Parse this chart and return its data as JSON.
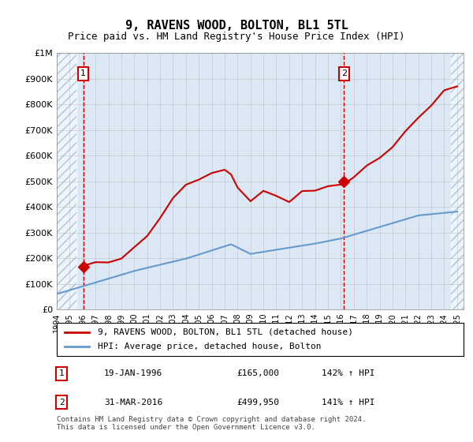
{
  "title": "9, RAVENS WOOD, BOLTON, BL1 5TL",
  "subtitle": "Price paid vs. HM Land Registry's House Price Index (HPI)",
  "y_label_max": 1000000,
  "yticks": [
    0,
    100000,
    200000,
    300000,
    400000,
    500000,
    600000,
    700000,
    800000,
    900000,
    1000000
  ],
  "ytick_labels": [
    "£0",
    "£100K",
    "£200K",
    "£300K",
    "£400K",
    "£500K",
    "£600K",
    "£700K",
    "£800K",
    "£900K",
    "£1M"
  ],
  "x_start_year": 1994,
  "x_end_year": 2025,
  "point1": {
    "date_num": 1996.05,
    "price": 165000,
    "label": "1",
    "date_str": "19-JAN-1996",
    "price_str": "£165,000",
    "hpi_str": "142% ↑ HPI"
  },
  "point2": {
    "date_num": 2016.25,
    "price": 499950,
    "label": "2",
    "date_str": "31-MAR-2016",
    "price_str": "£499,950",
    "hpi_str": "141% ↑ HPI"
  },
  "line1_color": "#cc0000",
  "line2_color": "#6699cc",
  "background_color": "#dce9f5",
  "hatch_color": "#b0c4d8",
  "grid_color": "#aaaaaa",
  "footnote": "Contains HM Land Registry data © Crown copyright and database right 2024.\nThis data is licensed under the Open Government Licence v3.0.",
  "legend_line1": "9, RAVENS WOOD, BOLTON, BL1 5TL (detached house)",
  "legend_line2": "HPI: Average price, detached house, Bolton"
}
